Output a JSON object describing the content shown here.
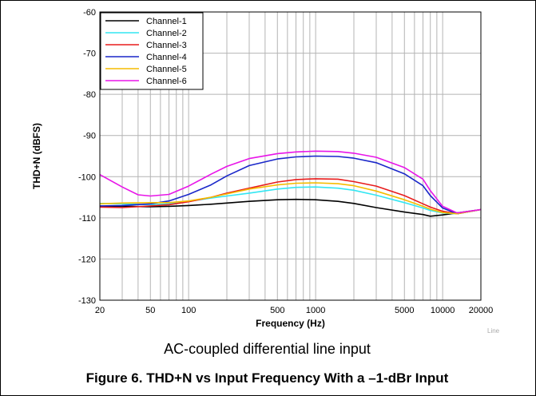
{
  "chart_data": {
    "type": "line",
    "title": "",
    "xlabel": "Frequency (Hz)",
    "ylabel": "THD+N (dBFS)",
    "xscale": "log",
    "xlim": [
      20,
      20000
    ],
    "ylim": [
      -130,
      -60
    ],
    "xticks": [
      {
        "value": 20,
        "label": "20"
      },
      {
        "value": 50,
        "label": "50"
      },
      {
        "value": 100,
        "label": "100"
      },
      {
        "value": 500,
        "label": "500"
      },
      {
        "value": 1000,
        "label": "1000"
      },
      {
        "value": 5000,
        "label": "5000"
      },
      {
        "value": 10000,
        "label": "10000"
      },
      {
        "value": 20000,
        "label": "20000"
      }
    ],
    "yticks": [
      -130,
      -120,
      -110,
      -100,
      -90,
      -80,
      -70,
      -60
    ],
    "grid": true,
    "legend_position": "top-left",
    "watermark": "Line",
    "series": [
      {
        "name": "Channel-1",
        "color": "#000000",
        "x": [
          20,
          30,
          50,
          70,
          100,
          150,
          200,
          300,
          500,
          700,
          1000,
          1500,
          2000,
          3000,
          5000,
          7000,
          8000,
          10000,
          13000,
          20000
        ],
        "y": [
          -107.2,
          -107.2,
          -107.3,
          -107.2,
          -107.0,
          -106.7,
          -106.4,
          -106.0,
          -105.6,
          -105.5,
          -105.6,
          -106.0,
          -106.5,
          -107.5,
          -108.6,
          -109.2,
          -109.6,
          -109.3,
          -108.8,
          -108.0
        ]
      },
      {
        "name": "Channel-2",
        "color": "#33e6f2",
        "x": [
          20,
          30,
          50,
          70,
          100,
          150,
          200,
          300,
          500,
          700,
          1000,
          1500,
          2000,
          3000,
          5000,
          7000,
          8000,
          10000,
          13000,
          20000
        ],
        "y": [
          -106.5,
          -106.6,
          -106.8,
          -106.6,
          -106.0,
          -105.2,
          -104.7,
          -104.0,
          -103.0,
          -102.6,
          -102.5,
          -102.8,
          -103.3,
          -104.5,
          -106.3,
          -107.6,
          -108.2,
          -108.8,
          -109.0,
          -108.0
        ]
      },
      {
        "name": "Channel-3",
        "color": "#e81c1c",
        "x": [
          20,
          30,
          50,
          70,
          100,
          150,
          200,
          300,
          500,
          700,
          1000,
          1500,
          2000,
          3000,
          5000,
          7000,
          8000,
          10000,
          13000,
          20000
        ],
        "y": [
          -107.4,
          -107.5,
          -107.1,
          -106.8,
          -106.1,
          -105.0,
          -104.0,
          -102.8,
          -101.3,
          -100.7,
          -100.5,
          -100.6,
          -101.2,
          -102.3,
          -104.6,
          -106.6,
          -107.4,
          -108.4,
          -109.0,
          -108.0
        ]
      },
      {
        "name": "Channel-4",
        "color": "#1a27c9",
        "x": [
          20,
          30,
          50,
          70,
          100,
          150,
          200,
          300,
          500,
          700,
          1000,
          1500,
          2000,
          3000,
          5000,
          7000,
          8000,
          10000,
          13000,
          20000
        ],
        "y": [
          -107.1,
          -107.0,
          -106.6,
          -105.9,
          -104.3,
          -102.0,
          -99.8,
          -97.3,
          -95.7,
          -95.2,
          -95.0,
          -95.1,
          -95.5,
          -96.6,
          -99.3,
          -102.2,
          -104.6,
          -107.6,
          -109.0,
          -108.0
        ]
      },
      {
        "name": "Channel-5",
        "color": "#f5bc00",
        "x": [
          20,
          30,
          50,
          70,
          100,
          150,
          200,
          300,
          500,
          700,
          1000,
          1500,
          2000,
          3000,
          5000,
          7000,
          8000,
          10000,
          13000,
          20000
        ],
        "y": [
          -106.6,
          -106.4,
          -106.3,
          -106.3,
          -105.9,
          -105.0,
          -104.2,
          -103.0,
          -102.0,
          -101.6,
          -101.5,
          -101.7,
          -102.2,
          -103.5,
          -105.6,
          -107.2,
          -107.9,
          -108.7,
          -109.0,
          -108.0
        ]
      },
      {
        "name": "Channel-6",
        "color": "#e815e8",
        "x": [
          20,
          30,
          40,
          50,
          70,
          100,
          150,
          200,
          300,
          500,
          700,
          1000,
          1500,
          2000,
          3000,
          5000,
          7000,
          8000,
          10000,
          13000,
          20000
        ],
        "y": [
          -99.5,
          -102.5,
          -104.4,
          -104.7,
          -104.3,
          -102.3,
          -99.4,
          -97.5,
          -95.6,
          -94.4,
          -94.0,
          -93.8,
          -93.9,
          -94.3,
          -95.3,
          -97.8,
          -100.6,
          -103.4,
          -107.2,
          -108.8,
          -108.0
        ]
      }
    ]
  },
  "caption": "AC-coupled differential line input",
  "figure_title": "Figure 6. THD+N vs Input Frequency With a –1-dBr Input"
}
